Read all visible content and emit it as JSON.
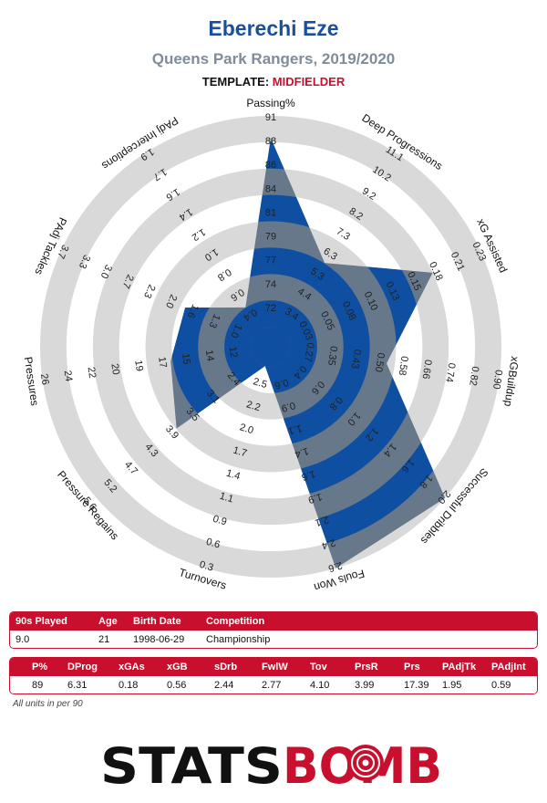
{
  "header": {
    "player_name": "Eberechi Eze",
    "team_season": "Queens Park Rangers, 2019/2020",
    "template_label": "TEMPLATE:",
    "template_value": "MIDFIELDER"
  },
  "chart_data": {
    "type": "radar",
    "series": [
      {
        "name": "",
        "color": "#0f4fa2",
        "values": [
          89,
          6.31,
          0.18,
          0.56,
          2.44,
          2.77,
          4.1,
          3.99,
          17.39,
          1.95,
          0.59
        ]
      }
    ],
    "axes": [
      {
        "label": "Passing%",
        "min": 72,
        "max": 91,
        "inverted": false,
        "ticks": [
          "72",
          "74",
          "77",
          "79",
          "81",
          "84",
          "86",
          "88",
          "91"
        ]
      },
      {
        "label": "Deep Progressions",
        "min": 3.4,
        "max": 11.1,
        "inverted": false,
        "ticks": [
          "3.4",
          "4.4",
          "5.3",
          "6.3",
          "7.3",
          "8.2",
          "9.2",
          "10.2",
          "11.1"
        ]
      },
      {
        "label": "xG Assisted",
        "min": 0.03,
        "max": 0.23,
        "inverted": false,
        "ticks": [
          "0.03",
          "0.05",
          "0.08",
          "0.10",
          "0.13",
          "0.15",
          "0.18",
          "0.21",
          "0.23"
        ]
      },
      {
        "label": "xGBuildup",
        "min": 0.27,
        "max": 0.9,
        "inverted": false,
        "ticks": [
          "0.27",
          "0.35",
          "0.43",
          "0.50",
          "0.58",
          "0.66",
          "0.74",
          "0.82",
          "0.90"
        ]
      },
      {
        "label": "Successful Dribbles",
        "min": 0.4,
        "max": 2.0,
        "inverted": false,
        "ticks": [
          "0.4",
          "0.6",
          "0.8",
          "1.0",
          "1.2",
          "1.4",
          "1.6",
          "1.8",
          "2.0"
        ]
      },
      {
        "label": "Fouls Won",
        "min": 0.6,
        "max": 2.6,
        "inverted": false,
        "ticks": [
          "0.6",
          "0.9",
          "1.1",
          "1.4",
          "1.6",
          "1.9",
          "2.1",
          "2.4",
          "2.6"
        ]
      },
      {
        "label": "Turnovers",
        "min": 0.3,
        "max": 2.5,
        "inverted": true,
        "ticks": [
          "2.5",
          "2.2",
          "2.0",
          "1.7",
          "1.4",
          "1.1",
          "0.9",
          "0.6",
          "0.3"
        ]
      },
      {
        "label": "Pressure Regains",
        "min": 2.4,
        "max": 5.6,
        "inverted": false,
        "ticks": [
          "2.4",
          "3.1",
          "3.5",
          "3.9",
          "4.3",
          "4.7",
          "5.2",
          "5.6"
        ]
      },
      {
        "label": "Pressures",
        "min": 12,
        "max": 26,
        "inverted": false,
        "ticks": [
          "12",
          "14",
          "15",
          "17",
          "19",
          "20",
          "22",
          "24",
          "26"
        ]
      },
      {
        "label": "PAdj Tackles",
        "min": 1.0,
        "max": 3.7,
        "inverted": false,
        "ticks": [
          "1.0",
          "1.3",
          "1.6",
          "2.0",
          "2.3",
          "2.7",
          "3.0",
          "3.3",
          "3.7"
        ]
      },
      {
        "label": "PAdj Interceptions",
        "min": 0.4,
        "max": 1.9,
        "inverted": false,
        "ticks": [
          "0.4",
          "0.6",
          "0.8",
          "1.0",
          "1.2",
          "1.4",
          "1.6",
          "1.7",
          "1.9"
        ]
      }
    ]
  },
  "info_table": {
    "headers": [
      "90s Played",
      "Age",
      "Birth Date",
      "Competition"
    ],
    "values": [
      "9.0",
      "21",
      "1998-06-29",
      "Championship"
    ]
  },
  "stats_table": {
    "headers": [
      "P%",
      "DProg",
      "xGAs",
      "xGB",
      "sDrb",
      "FwlW",
      "Tov",
      "PrsR",
      "Prs",
      "PAdjTk",
      "PAdjInt"
    ],
    "values": [
      "89",
      "6.31",
      "0.18",
      "0.56",
      "2.44",
      "2.77",
      "4.10",
      "3.99",
      "17.39",
      "1.95",
      "0.59"
    ]
  },
  "footnote": "All units in per 90",
  "logo": {
    "text_left": "STATS",
    "text_right": "BOMB",
    "color_left": "#111111",
    "color_right": "#c8102e"
  }
}
